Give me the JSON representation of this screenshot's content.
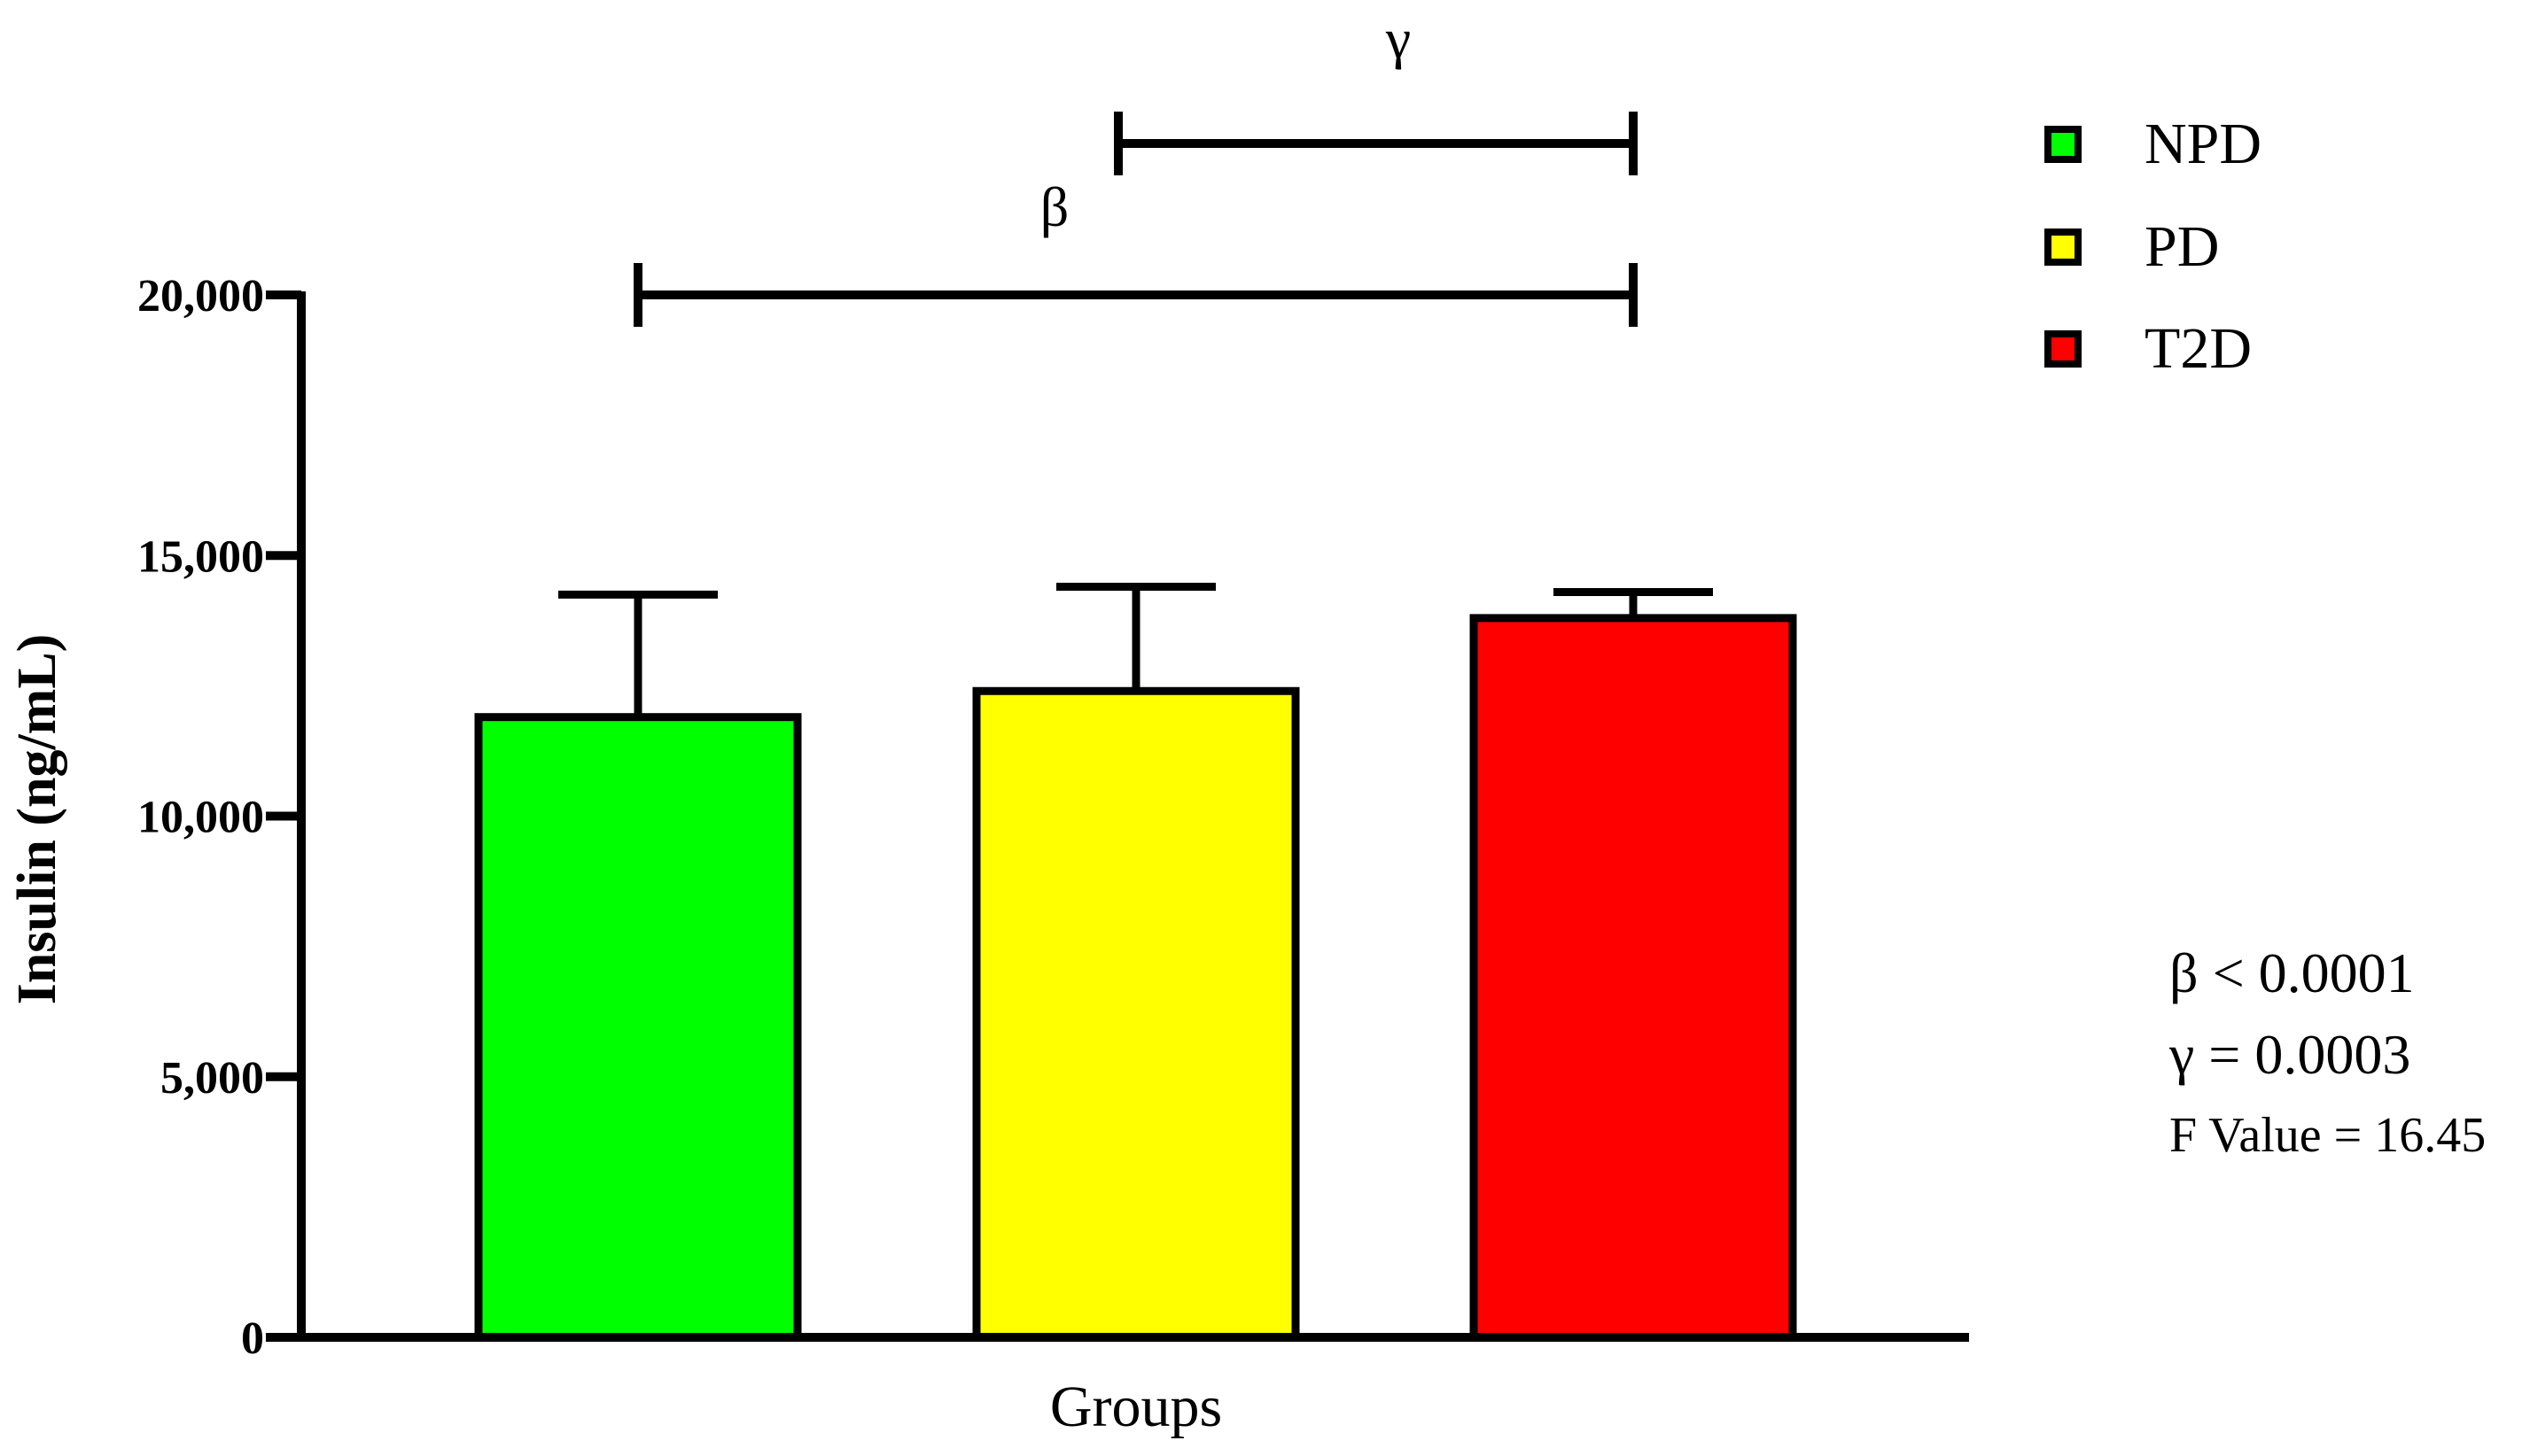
{
  "chart_data": {
    "type": "bar",
    "categories": [
      "NPD",
      "PD",
      "T2D"
    ],
    "values": [
      11900,
      12400,
      13800
    ],
    "error_upper": [
      14250,
      14400,
      14300
    ],
    "colors": [
      "#00ff00",
      "#ffff00",
      "#ff0000"
    ],
    "xlabel": "Groups",
    "ylabel": "Insulin (ng/mL)",
    "ylim": [
      0,
      20000
    ],
    "yticks": [
      0,
      5000,
      10000,
      15000,
      20000
    ],
    "ytick_labels": [
      "0",
      "5,000",
      "10,000",
      "15,000",
      "20,000"
    ],
    "legend": {
      "position": "top-right",
      "entries": [
        {
          "label": "NPD",
          "color": "#00ff00"
        },
        {
          "label": "PD",
          "color": "#ffff00"
        },
        {
          "label": "T2D",
          "color": "#ff0000"
        }
      ]
    },
    "significance": [
      {
        "symbol": "γ",
        "from": "PD",
        "to": "T2D"
      },
      {
        "symbol": "β",
        "from": "NPD",
        "to": "T2D"
      }
    ],
    "stats": [
      "β < 0.0001",
      "γ = 0.0003",
      "F Value = 16.45"
    ]
  }
}
